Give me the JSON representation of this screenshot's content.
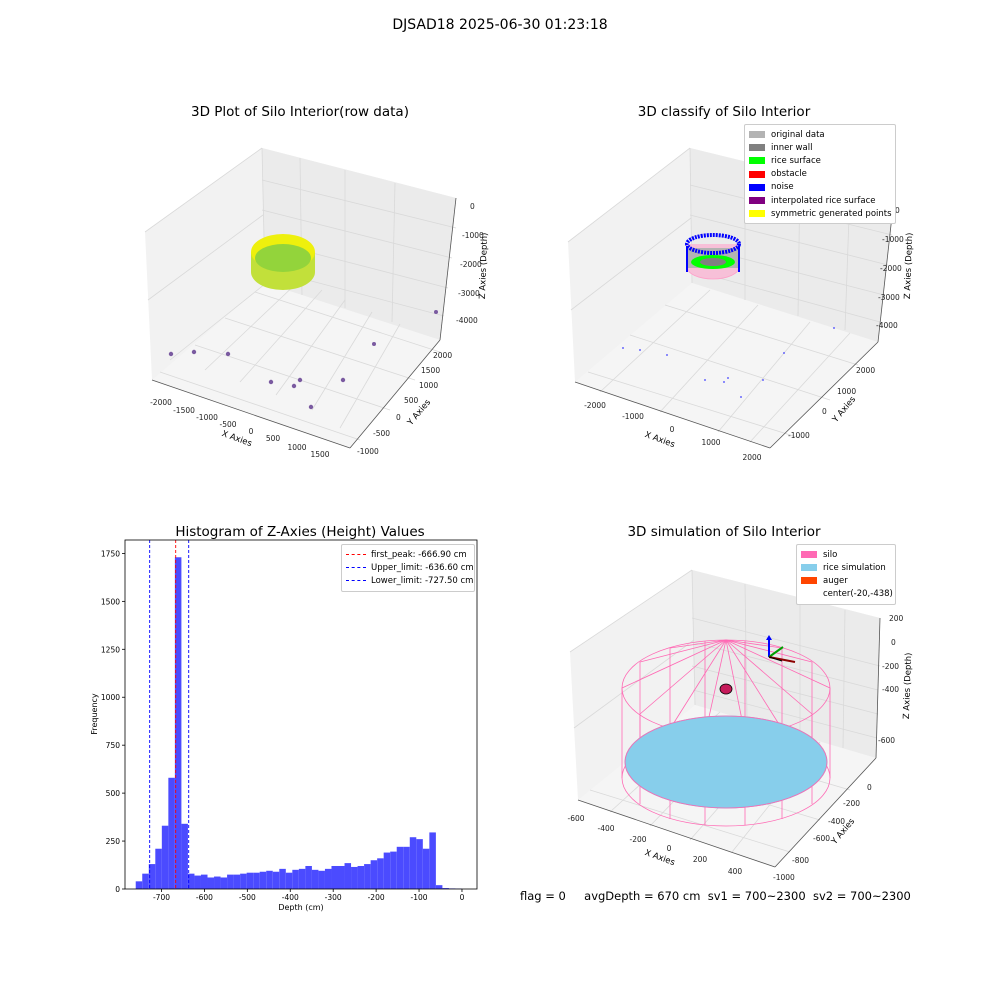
{
  "suptitle": "DJSAD18 2025-06-30 01:23:18",
  "status": {
    "flag": "flag = 0",
    "avg_depth": "avgDepth = 670 cm",
    "sv1": "sv1 = 700~2300",
    "sv2": "sv2 = 700~2300"
  },
  "plot1": {
    "title": "3D Plot of Silo Interior(row data)",
    "xlabel": "X Axies",
    "ylabel": "Y Axies",
    "zlabel": "Z Axies (Depth)",
    "xticks": [
      "-2000",
      "-1500",
      "-1000",
      "-500",
      "0",
      "500",
      "1000",
      "1500"
    ],
    "yticks": [
      "-1000",
      "-500",
      "0",
      "500",
      "1000",
      "1500",
      "2000"
    ],
    "zticks": [
      "0",
      "-1000",
      "-2000",
      "-3000",
      "-4000"
    ],
    "colors": {
      "rice": "#8fd63a",
      "rim": "#f2ef0a",
      "outlier": "#7a5aa0"
    }
  },
  "plot2": {
    "title": "3D classify of Silo Interior",
    "xlabel": "X Axies",
    "ylabel": "Y Axies",
    "zlabel": "Z Axies (Depth)",
    "xticks": [
      "-2000",
      "-1000",
      "0",
      "1000",
      "2000"
    ],
    "yticks": [
      "-1000",
      "0",
      "1000",
      "2000"
    ],
    "zticks": [
      "0",
      "-1000",
      "-2000",
      "-3000",
      "-4000"
    ],
    "legend": [
      {
        "label": "original data",
        "color": "#b3b3b3"
      },
      {
        "label": "inner wall",
        "color": "#808080"
      },
      {
        "label": "rice surface",
        "color": "#00ff00"
      },
      {
        "label": "obstacle",
        "color": "#ff0000"
      },
      {
        "label": "noise",
        "color": "#0000ff"
      },
      {
        "label": "interpolated rice surface",
        "color": "#800080"
      },
      {
        "label": "symmetric generated points",
        "color": "#ffff00"
      }
    ]
  },
  "plot3": {
    "title": "Histogram of Z-Axies (Height) Values",
    "xlabel": "Depth (cm)",
    "ylabel": "Frequency",
    "xticks": [
      "-700",
      "-600",
      "-500",
      "-400",
      "-300",
      "-200",
      "-100",
      "0"
    ],
    "yticks": [
      "0",
      "250",
      "500",
      "750",
      "1000",
      "1250",
      "1500",
      "1750"
    ],
    "legend": [
      {
        "label": "first_peak: -666.90 cm",
        "color": "#ff0000"
      },
      {
        "label": "Upper_limit: -636.60 cm",
        "color": "#0000ff"
      },
      {
        "label": "Lower_limit: -727.50 cm",
        "color": "#0000ff"
      }
    ]
  },
  "plot4": {
    "title": "3D simulation of Silo Interior",
    "xlabel": "X Axies",
    "ylabel": "Y Axies",
    "zlabel": "Z Axies (Depth)",
    "xticks": [
      "-600",
      "-400",
      "-200",
      "0",
      "200",
      "400"
    ],
    "yticks": [
      "-1000",
      "-800",
      "-600",
      "-400",
      "-200",
      "0"
    ],
    "zticks": [
      "200",
      "0",
      "-200",
      "-400",
      "-600"
    ],
    "legend": [
      {
        "label": "silo",
        "color": "#ff69b4"
      },
      {
        "label": "rice simulation",
        "color": "#87ceeb"
      },
      {
        "label": "auger",
        "color": "#ff4500"
      },
      {
        "label": "center(-20,-438)",
        "color": ""
      }
    ]
  },
  "chart_data": {
    "type": "bar",
    "title": "Histogram of Z-Axies (Height) Values",
    "xlabel": "Depth (cm)",
    "ylabel": "Frequency",
    "xlim": [
      -785,
      35
    ],
    "ylim": [
      0,
      1820
    ],
    "bin_width": 15.2,
    "bin_starts": [
      -760.0,
      -744.8,
      -729.6,
      -714.4,
      -699.2,
      -684.0,
      -668.8,
      -653.6,
      -638.4,
      -623.2,
      -608.0,
      -592.8,
      -577.6,
      -562.4,
      -547.2,
      -532.0,
      -516.8,
      -501.6,
      -486.4,
      -471.2,
      -456.0,
      -440.8,
      -425.6,
      -410.4,
      -395.2,
      -380.0,
      -364.8,
      -349.6,
      -334.4,
      -319.2,
      -304.0,
      -288.8,
      -273.6,
      -258.4,
      -243.2,
      -228.0,
      -212.8,
      -197.6,
      -182.4,
      -167.2,
      -152.0,
      -136.8,
      -121.6,
      -106.4,
      -91.2,
      -76.0,
      -60.8,
      -45.6,
      -30.4,
      -15.2
    ],
    "values": [
      40,
      80,
      130,
      210,
      330,
      580,
      1730,
      340,
      80,
      70,
      75,
      60,
      65,
      60,
      75,
      75,
      80,
      85,
      85,
      90,
      95,
      90,
      105,
      85,
      100,
      105,
      120,
      100,
      95,
      105,
      120,
      120,
      135,
      115,
      120,
      130,
      150,
      160,
      190,
      195,
      220,
      220,
      270,
      260,
      210,
      295,
      20,
      5,
      3,
      2
    ],
    "vlines": [
      {
        "label": "first_peak: -666.90 cm",
        "x": -666.9,
        "color": "#ff0000"
      },
      {
        "label": "Upper_limit: -636.60 cm",
        "x": -636.6,
        "color": "#0000ff"
      },
      {
        "label": "Lower_limit: -727.50 cm",
        "x": -727.5,
        "color": "#0000ff"
      }
    ],
    "bar_color": "#4b4bff",
    "legend_position": "upper right"
  }
}
